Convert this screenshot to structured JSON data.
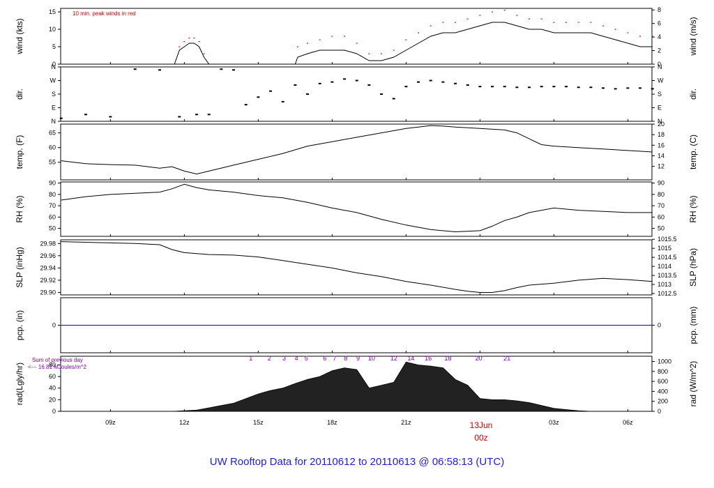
{
  "title": "UW Rooftop Data for 20110612  to  20110613 @ 06:58:13  (UTC)",
  "time_axis": {
    "tick_labels": [
      "09z",
      "12z",
      "15z",
      "18z",
      "21z",
      "03z",
      "06z"
    ],
    "tick_hours": [
      9,
      12,
      15,
      18,
      21,
      27,
      30
    ],
    "date_label": "13Jun",
    "date_time": "00z",
    "date_hour": 24,
    "start_hour": 6.98,
    "end_hour": 30.98
  },
  "notes": {
    "peak_winds": "10 min. peak winds in red",
    "rad_sum_line1": "Sum of previous day",
    "rad_sum_line2": "<--- 16.81 MJoules/m^2"
  },
  "colors": {
    "series": "#000000",
    "peak": "#dd0000",
    "precip": "#0000cc",
    "hours": "#7a00a8",
    "title": "#2020cc",
    "date": "#cc0000"
  },
  "chart_data": [
    {
      "type": "line",
      "name": "wind",
      "ylabel": "wind (kts)",
      "ylabel_right": "wind (m/s)",
      "ylim": [
        0,
        16
      ],
      "yticks": [
        "0",
        "5",
        "10",
        "15"
      ],
      "ytick_values": [
        0,
        5,
        10,
        15
      ],
      "yticks_right": [
        "0",
        "2",
        "4",
        "6",
        "8"
      ],
      "ytick_right_values": [
        0,
        3.888,
        7.776,
        11.664,
        15.552
      ],
      "x": [
        7,
        8.5,
        9,
        10,
        11,
        11.6,
        11.8,
        12,
        12.2,
        12.4,
        12.6,
        12.8,
        13,
        14,
        15,
        16,
        16.5,
        16.6,
        17,
        17.5,
        18,
        18.5,
        19,
        19.5,
        20,
        20.5,
        21,
        21.5,
        22,
        22.5,
        23,
        23.5,
        24,
        24.5,
        25,
        25.5,
        26,
        26.5,
        27,
        27.5,
        28,
        28.5,
        29,
        29.5,
        30,
        30.5,
        31
      ],
      "y": [
        0,
        0,
        0,
        0,
        0,
        0,
        4,
        5,
        6,
        6,
        5,
        2,
        0,
        0,
        0,
        0,
        0,
        2,
        3,
        4,
        4,
        4,
        3,
        1,
        1,
        2,
        4,
        6,
        8,
        9,
        9,
        10,
        11,
        12,
        12,
        11,
        10,
        10,
        9,
        9,
        9,
        9,
        8,
        7,
        6,
        5,
        5
      ],
      "peak_y": [
        0,
        0,
        0,
        0,
        0,
        0,
        5,
        6.5,
        7.5,
        7.5,
        6.5,
        3,
        0,
        0,
        0,
        0,
        0,
        5,
        6,
        7,
        8,
        8,
        6,
        3,
        3,
        4,
        7,
        9,
        11,
        12,
        12,
        13,
        14,
        15,
        15.5,
        14,
        13,
        13,
        12,
        12,
        12,
        12,
        11,
        10,
        9,
        8,
        8
      ]
    },
    {
      "type": "scatter",
      "name": "dir",
      "ylabel": "dir.",
      "ylabel_right": "dir.",
      "ylim": [
        0,
        360
      ],
      "yticks": [
        "N",
        "E",
        "S",
        "W",
        "N"
      ],
      "ytick_values": [
        0,
        90,
        180,
        270,
        360
      ],
      "x": [
        7,
        8,
        9,
        10,
        11,
        11.8,
        12.5,
        13,
        13.5,
        14,
        14.5,
        15,
        15.5,
        16,
        16.5,
        17,
        17.5,
        18,
        18.5,
        19,
        19.5,
        20,
        20.5,
        21,
        21.5,
        22,
        22.5,
        23,
        23.5,
        24,
        24.5,
        25,
        25.5,
        26,
        26.5,
        27,
        27.5,
        28,
        28.5,
        29,
        29.5,
        30,
        30.5,
        31
      ],
      "y": [
        20,
        45,
        30,
        345,
        340,
        30,
        45,
        45,
        345,
        340,
        110,
        160,
        200,
        130,
        240,
        180,
        250,
        260,
        280,
        270,
        240,
        180,
        150,
        230,
        260,
        270,
        260,
        250,
        240,
        230,
        230,
        230,
        225,
        225,
        230,
        230,
        230,
        225,
        225,
        220,
        215,
        220,
        220,
        215
      ]
    },
    {
      "type": "line",
      "name": "temp",
      "ylabel": "temp. (F)",
      "ylabel_right": "temp. (C)",
      "ylim": [
        49,
        68
      ],
      "yticks": [
        "55",
        "60",
        "65"
      ],
      "ytick_values": [
        55,
        60,
        65
      ],
      "yticks_right": [
        "12",
        "14",
        "16",
        "18",
        "20"
      ],
      "ytick_right_values": [
        53.6,
        57.2,
        60.8,
        64.4,
        68
      ],
      "x": [
        7,
        8,
        9,
        10,
        11,
        11.5,
        12,
        12.5,
        13,
        14,
        15,
        16,
        17,
        18,
        19,
        20,
        21,
        21.5,
        22,
        22.5,
        23,
        24,
        25,
        25.5,
        26,
        26.5,
        27,
        28,
        29,
        30,
        31
      ],
      "y": [
        55.5,
        54.5,
        54.2,
        54,
        53,
        53.5,
        52,
        51,
        52,
        54,
        56,
        58,
        60.5,
        62,
        63.5,
        65,
        66.5,
        67,
        67.5,
        67.3,
        67,
        66.5,
        66,
        65,
        63,
        61,
        60.5,
        60,
        59.5,
        59,
        58.5
      ]
    },
    {
      "type": "line",
      "name": "rh",
      "ylabel": "RH (%)",
      "ylabel_right": "RH (%)",
      "ylim": [
        43,
        91
      ],
      "yticks": [
        "50",
        "60",
        "70",
        "80",
        "90"
      ],
      "ytick_values": [
        50,
        60,
        70,
        80,
        90
      ],
      "yticks_right": [
        "50",
        "60",
        "70",
        "80",
        "90"
      ],
      "ytick_right_values": [
        50,
        60,
        70,
        80,
        90
      ],
      "x": [
        7,
        8,
        9,
        10,
        11,
        11.5,
        12,
        12.5,
        13,
        14,
        15,
        16,
        17,
        18,
        19,
        20,
        21,
        22,
        23,
        24,
        24.5,
        25,
        25.5,
        26,
        26.5,
        27,
        28,
        29,
        30,
        31
      ],
      "y": [
        75,
        78,
        80,
        81,
        82,
        85,
        89,
        86,
        84,
        82,
        79,
        77,
        73,
        68,
        64,
        58,
        53,
        49,
        47,
        48,
        52,
        57,
        60,
        64,
        66,
        68,
        66,
        65,
        64,
        64
      ]
    },
    {
      "type": "line",
      "name": "slp",
      "ylabel": "SLP (inHg)",
      "ylabel_right": "SLP (hPa)",
      "ylim": [
        29.896,
        29.986
      ],
      "yticks": [
        "29.90",
        "29.92",
        "29.94",
        "29.96",
        "29.98"
      ],
      "ytick_values": [
        29.9,
        29.92,
        29.94,
        29.96,
        29.98
      ],
      "yticks_right": [
        "1012.5",
        "1013",
        "1013.5",
        "1014",
        "1014.5",
        "1015",
        "1015.5"
      ],
      "ytick_right_values": [
        29.8983,
        29.9131,
        29.9278,
        29.9426,
        29.9574,
        29.9721,
        29.9869
      ],
      "x": [
        7,
        8,
        9,
        10,
        11,
        11.5,
        12,
        13,
        14,
        15,
        16,
        17,
        18,
        19,
        20,
        21,
        22,
        23,
        23.5,
        24,
        24.5,
        25,
        25.5,
        26,
        27,
        28,
        29,
        30,
        31
      ],
      "y": [
        29.983,
        29.982,
        29.981,
        29.98,
        29.978,
        29.97,
        29.965,
        29.962,
        29.961,
        29.958,
        29.952,
        29.946,
        29.94,
        29.932,
        29.926,
        29.918,
        29.912,
        29.905,
        29.902,
        29.9,
        29.9,
        29.903,
        29.908,
        29.912,
        29.915,
        29.92,
        29.923,
        29.921,
        29.918
      ]
    },
    {
      "type": "line",
      "name": "pcp",
      "ylabel": "pcp. (in)",
      "ylabel_right": "pcp. (mm)",
      "ylim": [
        -1,
        1
      ],
      "yticks": [
        "0"
      ],
      "ytick_values": [
        0
      ],
      "yticks_right": [
        "0"
      ],
      "ytick_right_values": [
        0
      ],
      "x": [
        7,
        31
      ],
      "y": [
        0,
        0
      ]
    },
    {
      "type": "area",
      "name": "rad",
      "ylabel": "rad(Lgly/hr)",
      "ylabel_right": "rad (W/m^2)",
      "ylim": [
        0,
        95
      ],
      "yticks": [
        "0",
        "20",
        "40",
        "60",
        "80"
      ],
      "ytick_values": [
        0,
        20,
        40,
        60,
        80
      ],
      "yticks_right": [
        "0",
        "200",
        "400",
        "600",
        "800",
        "1000"
      ],
      "ytick_right_values": [
        0,
        17.2,
        34.4,
        51.6,
        68.8,
        86
      ],
      "hour_labels": [
        "1",
        "2",
        "3",
        "4",
        "5",
        "6",
        "7",
        "8",
        "9",
        "10",
        "12",
        "14",
        "16",
        "18",
        "20",
        "21"
      ],
      "hour_label_hours": [
        14.7,
        15.45,
        16.05,
        16.55,
        16.95,
        17.7,
        18.1,
        18.55,
        19.05,
        19.6,
        20.5,
        21.2,
        21.9,
        22.7,
        23.95,
        25.1
      ],
      "x": [
        7,
        11.5,
        12.5,
        13,
        13.5,
        14,
        14.5,
        15,
        15.5,
        16,
        16.5,
        17,
        17.5,
        18,
        18.5,
        19,
        19.5,
        20,
        20.5,
        21,
        21.5,
        22,
        22.5,
        23,
        23.5,
        24,
        24.5,
        25,
        25.5,
        26,
        26.5,
        27,
        27.5,
        28,
        28.5,
        31
      ],
      "y": [
        0,
        0,
        2,
        6,
        10,
        14,
        22,
        30,
        36,
        40,
        48,
        55,
        60,
        70,
        75,
        72,
        40,
        45,
        50,
        85,
        80,
        78,
        75,
        55,
        45,
        22,
        20,
        20,
        18,
        15,
        10,
        5,
        3,
        1,
        0,
        0
      ]
    }
  ]
}
